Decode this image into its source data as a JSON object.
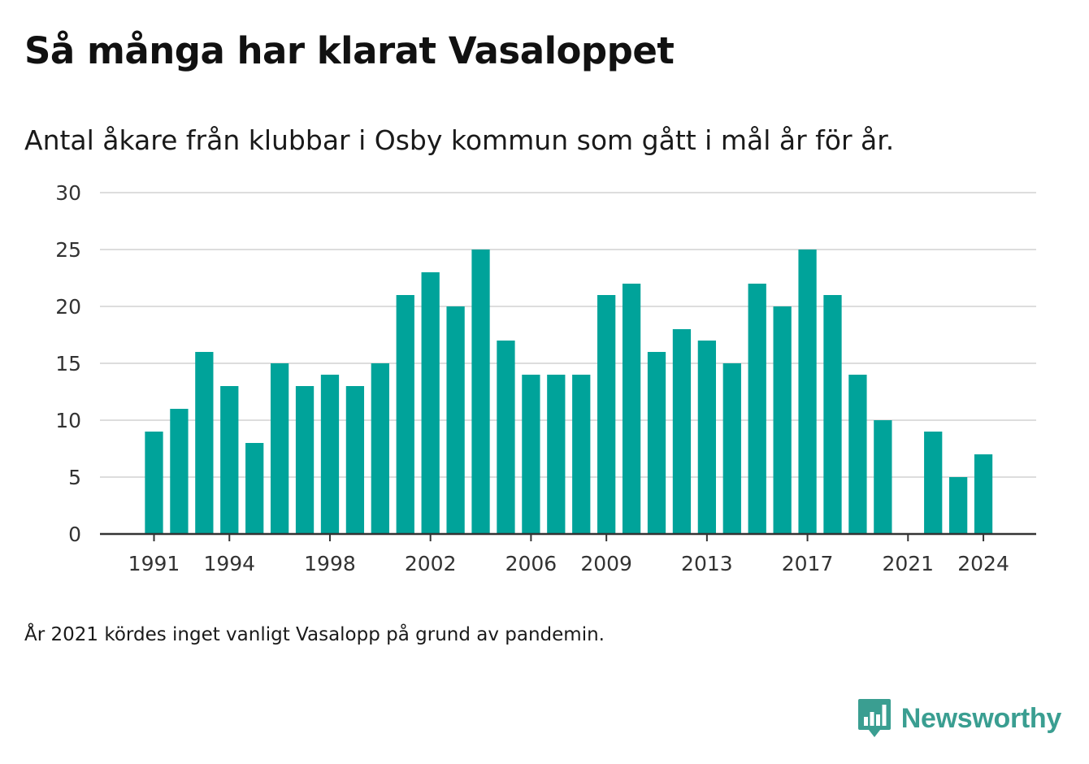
{
  "header": {
    "title": "Så många har klarat Vasaloppet",
    "subtitle": "Antal åkare från klubbar i Osby kommun som gått i mål år för år."
  },
  "footer": {
    "note": "År 2021 kördes inget vanligt Vasalopp på grund av pandemin.",
    "brand": "Newsworthy"
  },
  "colors": {
    "bar": "#00a39a",
    "grid": "#dddddd",
    "axis": "#333333",
    "brand": "#3a9e91"
  },
  "chart_data": {
    "type": "bar",
    "x": [
      1991,
      1992,
      1993,
      1994,
      1995,
      1996,
      1997,
      1998,
      1999,
      2000,
      2001,
      2002,
      2003,
      2004,
      2005,
      2006,
      2007,
      2008,
      2009,
      2010,
      2011,
      2012,
      2013,
      2014,
      2015,
      2016,
      2017,
      2018,
      2019,
      2020,
      2021,
      2022,
      2023,
      2024
    ],
    "values": [
      9,
      11,
      16,
      13,
      8,
      15,
      13,
      14,
      13,
      15,
      21,
      23,
      20,
      25,
      17,
      14,
      14,
      14,
      21,
      22,
      16,
      18,
      17,
      15,
      22,
      20,
      25,
      21,
      14,
      10,
      null,
      9,
      5,
      7
    ],
    "x_tick_labels": [
      1991,
      1994,
      1998,
      2002,
      2006,
      2009,
      2013,
      2017,
      2021,
      2024
    ],
    "y_ticks": [
      0,
      5,
      10,
      15,
      20,
      25,
      30
    ],
    "ylim": [
      0,
      30
    ],
    "xlabel": "",
    "ylabel": "",
    "grid": true
  }
}
